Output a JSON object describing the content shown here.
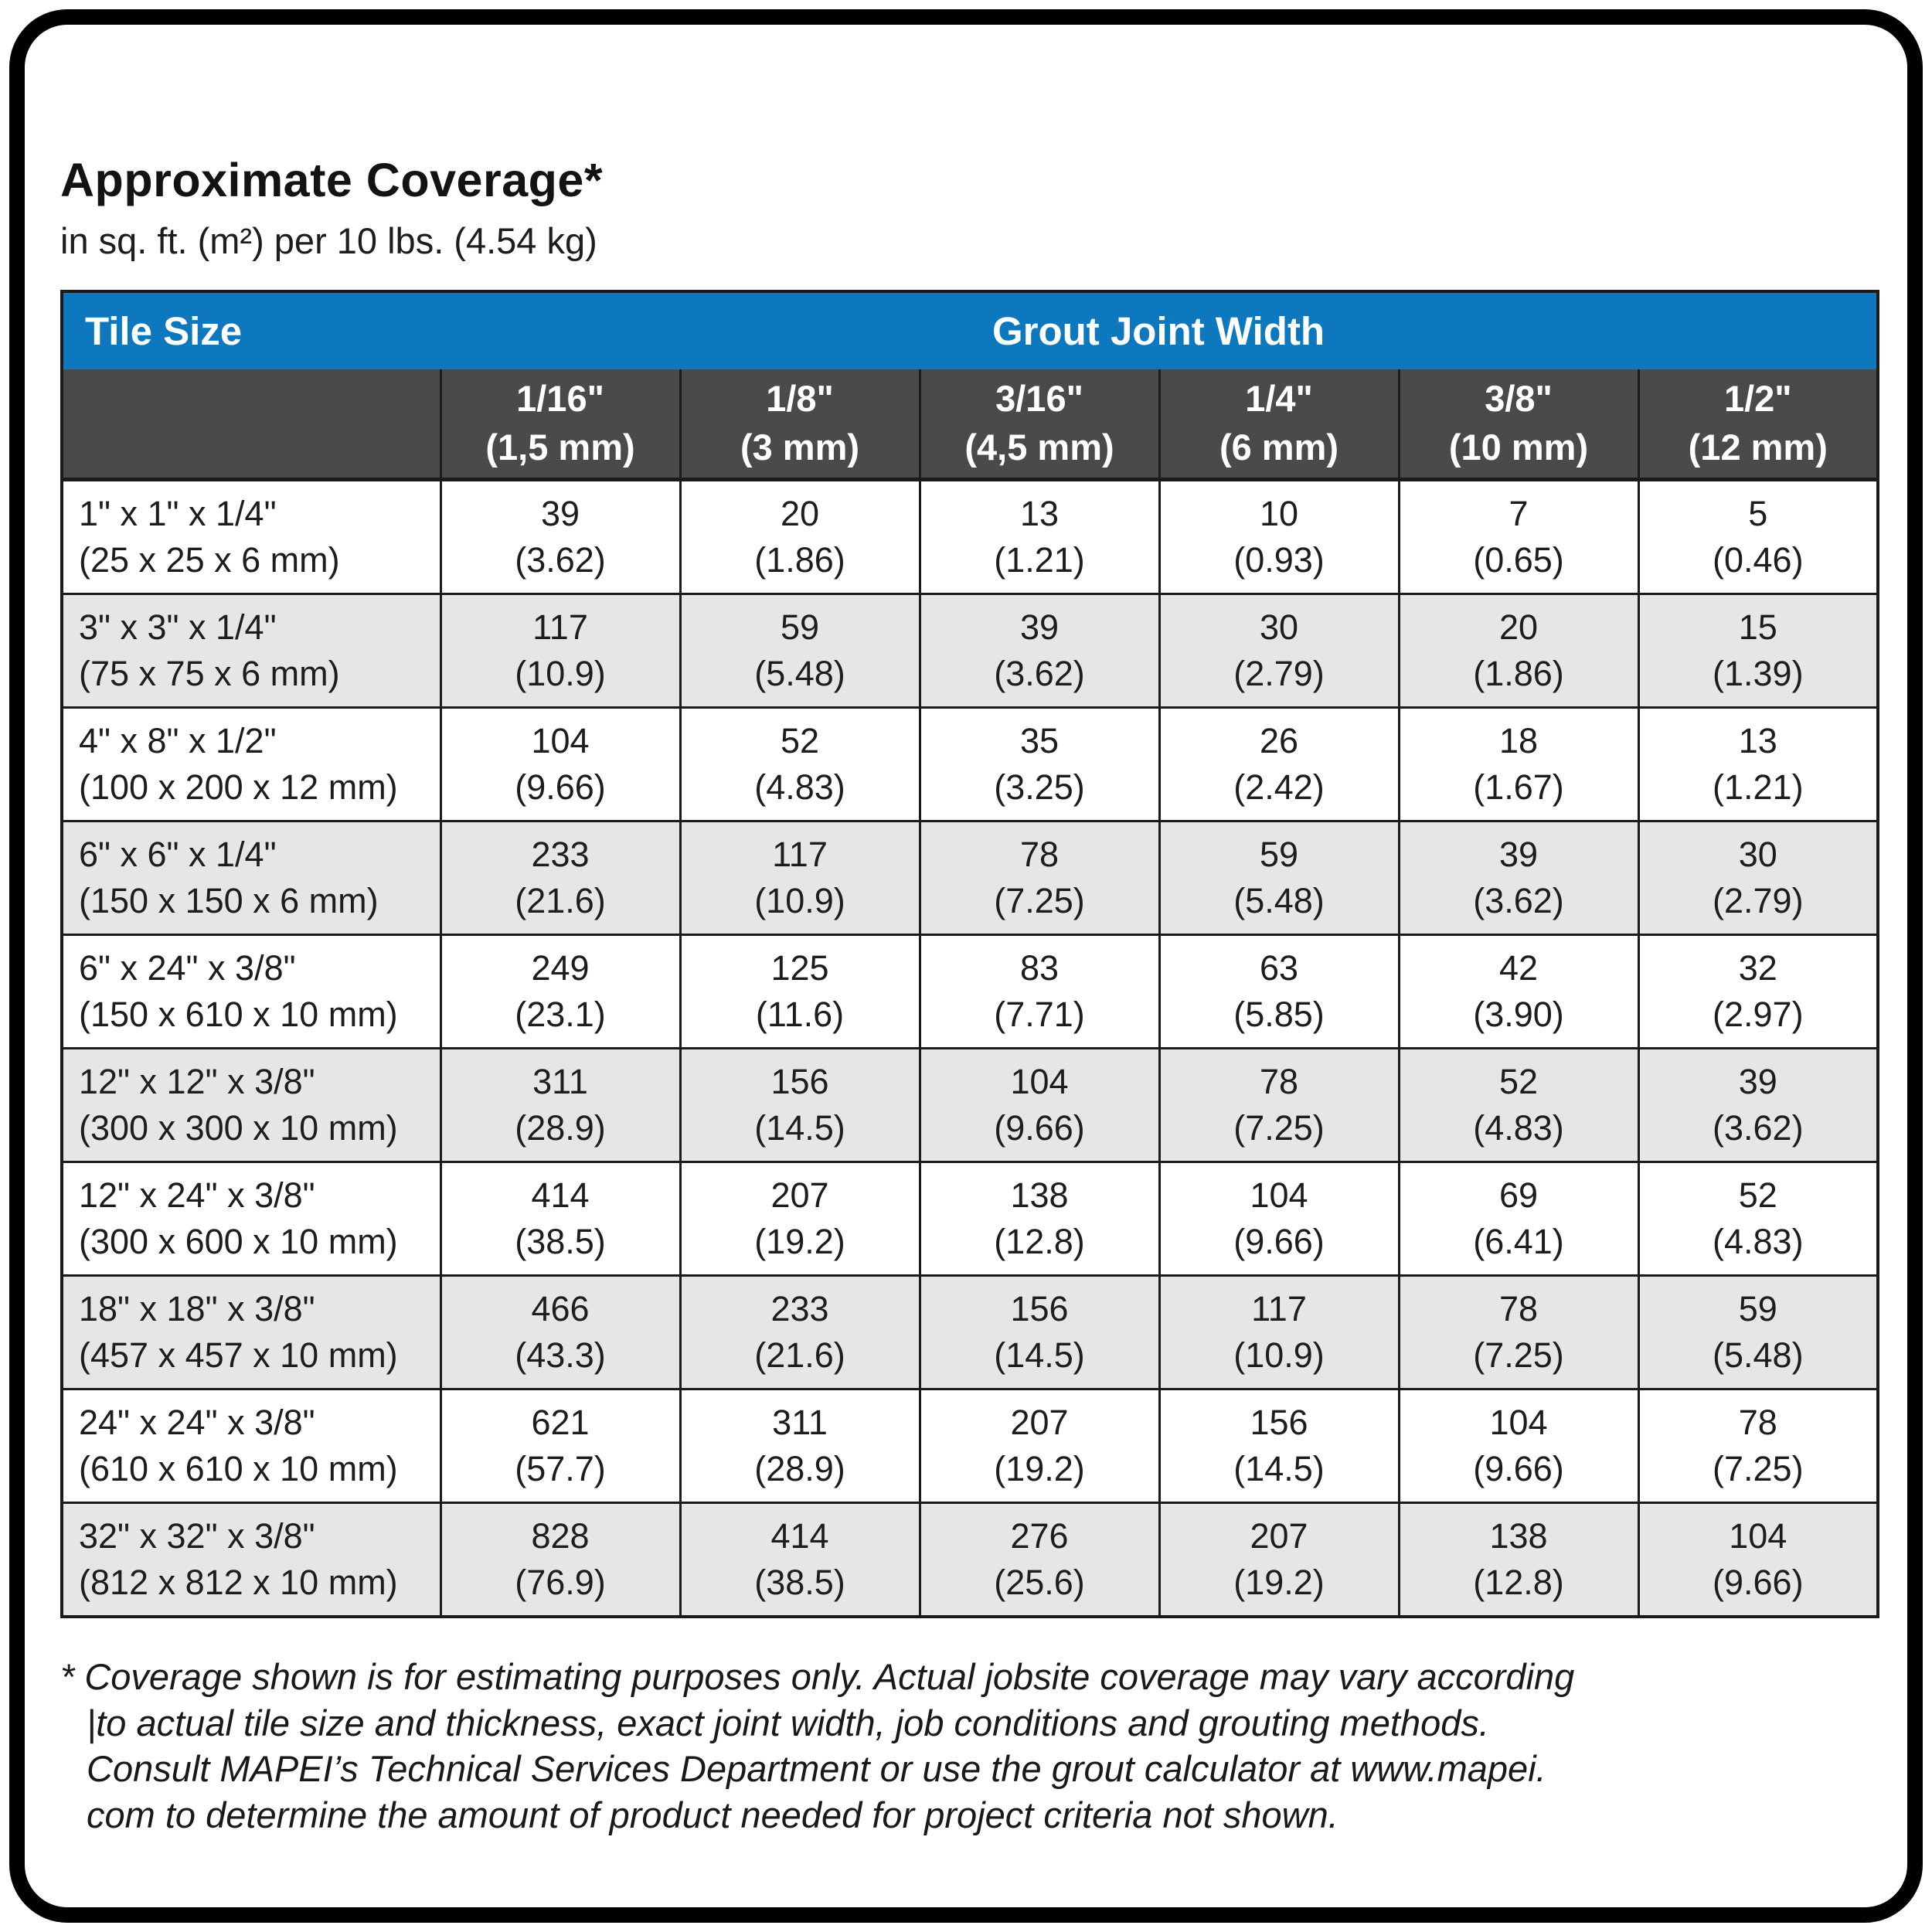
{
  "page": {
    "title": "Approximate Coverage*",
    "subtitle": "in sq. ft. (m²) per 10 lbs. (4.54 kg)"
  },
  "colors": {
    "header_blue": "#0d78be",
    "subheader_gray": "#4a4a4c",
    "alt_row_gray": "#e6e6e8",
    "grid_line": "#1b1b1d",
    "frame_black": "#000000"
  },
  "table": {
    "header": {
      "tile_size": "Tile Size",
      "grout_joint_width": "Grout Joint Width"
    },
    "columns": [
      {
        "inch": "1/16\"",
        "mm": "(1,5 mm)"
      },
      {
        "inch": "1/8\"",
        "mm": "(3 mm)"
      },
      {
        "inch": "3/16\"",
        "mm": "(4,5 mm)"
      },
      {
        "inch": "1/4\"",
        "mm": "(6 mm)"
      },
      {
        "inch": "3/8\"",
        "mm": "(10 mm)"
      },
      {
        "inch": "1/2\"",
        "mm": "(12 mm)"
      }
    ],
    "rows": [
      {
        "size_in": "1\" x 1\" x 1/4\"",
        "size_mm": "(25 x 25 x 6 mm)",
        "values": [
          [
            "39",
            "(3.62)"
          ],
          [
            "20",
            "(1.86)"
          ],
          [
            "13",
            "(1.21)"
          ],
          [
            "10",
            "(0.93)"
          ],
          [
            "7",
            "(0.65)"
          ],
          [
            "5",
            "(0.46)"
          ]
        ]
      },
      {
        "size_in": "3\" x 3\" x 1/4\"",
        "size_mm": "(75 x 75 x 6 mm)",
        "values": [
          [
            "117",
            "(10.9)"
          ],
          [
            "59",
            "(5.48)"
          ],
          [
            "39",
            "(3.62)"
          ],
          [
            "30",
            "(2.79)"
          ],
          [
            "20",
            "(1.86)"
          ],
          [
            "15",
            "(1.39)"
          ]
        ]
      },
      {
        "size_in": "4\" x 8\" x 1/2\"",
        "size_mm": "(100 x 200 x 12 mm)",
        "values": [
          [
            "104",
            "(9.66)"
          ],
          [
            "52",
            "(4.83)"
          ],
          [
            "35",
            "(3.25)"
          ],
          [
            "26",
            "(2.42)"
          ],
          [
            "18",
            "(1.67)"
          ],
          [
            "13",
            "(1.21)"
          ]
        ]
      },
      {
        "size_in": "6\" x 6\" x 1/4\"",
        "size_mm": "(150 x 150 x 6 mm)",
        "values": [
          [
            "233",
            "(21.6)"
          ],
          [
            "117",
            "(10.9)"
          ],
          [
            "78",
            "(7.25)"
          ],
          [
            "59",
            "(5.48)"
          ],
          [
            "39",
            "(3.62)"
          ],
          [
            "30",
            "(2.79)"
          ]
        ]
      },
      {
        "size_in": "6\" x 24\" x 3/8\"",
        "size_mm": "(150 x 610 x 10 mm)",
        "values": [
          [
            "249",
            "(23.1)"
          ],
          [
            "125",
            "(11.6)"
          ],
          [
            "83",
            "(7.71)"
          ],
          [
            "63",
            "(5.85)"
          ],
          [
            "42",
            "(3.90)"
          ],
          [
            "32",
            "(2.97)"
          ]
        ]
      },
      {
        "size_in": "12\" x 12\" x 3/8\"",
        "size_mm": "(300 x 300 x 10 mm)",
        "values": [
          [
            "311",
            "(28.9)"
          ],
          [
            "156",
            "(14.5)"
          ],
          [
            "104",
            "(9.66)"
          ],
          [
            "78",
            "(7.25)"
          ],
          [
            "52",
            "(4.83)"
          ],
          [
            "39",
            "(3.62)"
          ]
        ]
      },
      {
        "size_in": "12\" x 24\" x 3/8\"",
        "size_mm": "(300 x 600 x 10 mm)",
        "values": [
          [
            "414",
            "(38.5)"
          ],
          [
            "207",
            "(19.2)"
          ],
          [
            "138",
            "(12.8)"
          ],
          [
            "104",
            "(9.66)"
          ],
          [
            "69",
            "(6.41)"
          ],
          [
            "52",
            "(4.83)"
          ]
        ]
      },
      {
        "size_in": "18\" x 18\" x 3/8\"",
        "size_mm": "(457 x 457 x 10 mm)",
        "values": [
          [
            "466",
            "(43.3)"
          ],
          [
            "233",
            "(21.6)"
          ],
          [
            "156",
            "(14.5)"
          ],
          [
            "117",
            "(10.9)"
          ],
          [
            "78",
            "(7.25)"
          ],
          [
            "59",
            "(5.48)"
          ]
        ]
      },
      {
        "size_in": "24\" x 24\" x 3/8\"",
        "size_mm": "(610 x 610 x 10 mm)",
        "values": [
          [
            "621",
            "(57.7)"
          ],
          [
            "311",
            "(28.9)"
          ],
          [
            "207",
            "(19.2)"
          ],
          [
            "156",
            "(14.5)"
          ],
          [
            "104",
            "(9.66)"
          ],
          [
            "78",
            "(7.25)"
          ]
        ]
      },
      {
        "size_in": "32\" x 32\" x 3/8\"",
        "size_mm": "(812 x 812 x 10 mm)",
        "values": [
          [
            "828",
            "(76.9)"
          ],
          [
            "414",
            "(38.5)"
          ],
          [
            "276",
            "(25.6)"
          ],
          [
            "207",
            "(19.2)"
          ],
          [
            "138",
            "(12.8)"
          ],
          [
            "104",
            "(9.66)"
          ]
        ]
      }
    ]
  },
  "footnote": {
    "lines": [
      "* Coverage shown is for estimating purposes only. Actual jobsite coverage may vary according",
      "|to actual tile size and thickness, exact joint width, job conditions and grouting methods.",
      "Consult MAPEI’s Technical Services Department or use the grout calculator at www.mapei.",
      "com to determine the amount of product needed for project criteria not shown."
    ]
  }
}
